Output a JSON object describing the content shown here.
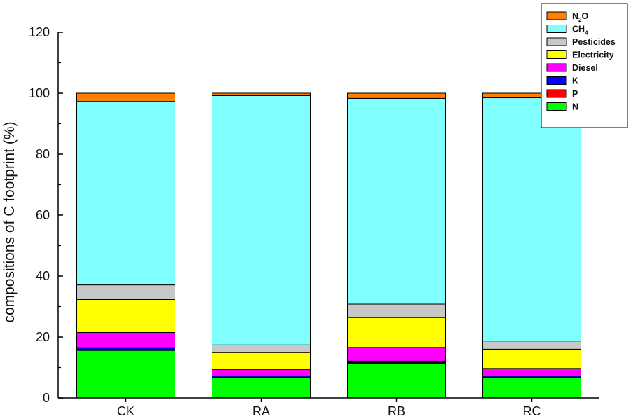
{
  "chart_data": {
    "type": "bar",
    "stacked": true,
    "categories": [
      "CK",
      "RA",
      "RB",
      "RC"
    ],
    "series": [
      {
        "name": "N",
        "color": "#00ff00",
        "values": [
          15.6,
          6.6,
          11.4,
          6.6
        ]
      },
      {
        "name": "P",
        "color": "#ff0000",
        "values": [
          0.2,
          0.2,
          0.2,
          0.2
        ]
      },
      {
        "name": "K",
        "color": "#0000ff",
        "values": [
          0.7,
          0.4,
          0.5,
          0.4
        ]
      },
      {
        "name": "Diesel",
        "color": "#ff00ff",
        "values": [
          5.0,
          2.2,
          4.5,
          2.5
        ]
      },
      {
        "name": "Electricity",
        "color": "#ffff00",
        "values": [
          10.8,
          5.5,
          9.8,
          6.3
        ]
      },
      {
        "name": "Pesticides",
        "color": "#c8c8c8",
        "values": [
          4.8,
          2.5,
          4.4,
          2.7
        ]
      },
      {
        "name": "CH4",
        "color": "#80ffff",
        "values": [
          60.2,
          81.8,
          67.5,
          79.8
        ]
      },
      {
        "name": "N2O",
        "color": "#ff8000",
        "values": [
          2.7,
          0.8,
          1.7,
          1.5
        ]
      }
    ],
    "ylabel": "compositions of C footprint (%)",
    "xlabel": "",
    "ylim": [
      0,
      120
    ],
    "yticks": [
      0,
      20,
      40,
      60,
      80,
      100,
      120
    ],
    "legend_position": "top-right",
    "legend_labels": [
      {
        "series": "N2O",
        "base": "N",
        "sub": "2",
        "tail": "O"
      },
      {
        "series": "CH4",
        "base": "CH",
        "sub": "4",
        "tail": ""
      },
      {
        "series": "Pesticides",
        "base": "Pesticides",
        "sub": "",
        "tail": ""
      },
      {
        "series": "Electricity",
        "base": "Electricity",
        "sub": "",
        "tail": ""
      },
      {
        "series": "Diesel",
        "base": "Diesel",
        "sub": "",
        "tail": ""
      },
      {
        "series": "K",
        "base": "K",
        "sub": "",
        "tail": ""
      },
      {
        "series": "P",
        "base": "P",
        "sub": "",
        "tail": ""
      },
      {
        "series": "N",
        "base": "N",
        "sub": "",
        "tail": ""
      }
    ],
    "grid": false
  }
}
